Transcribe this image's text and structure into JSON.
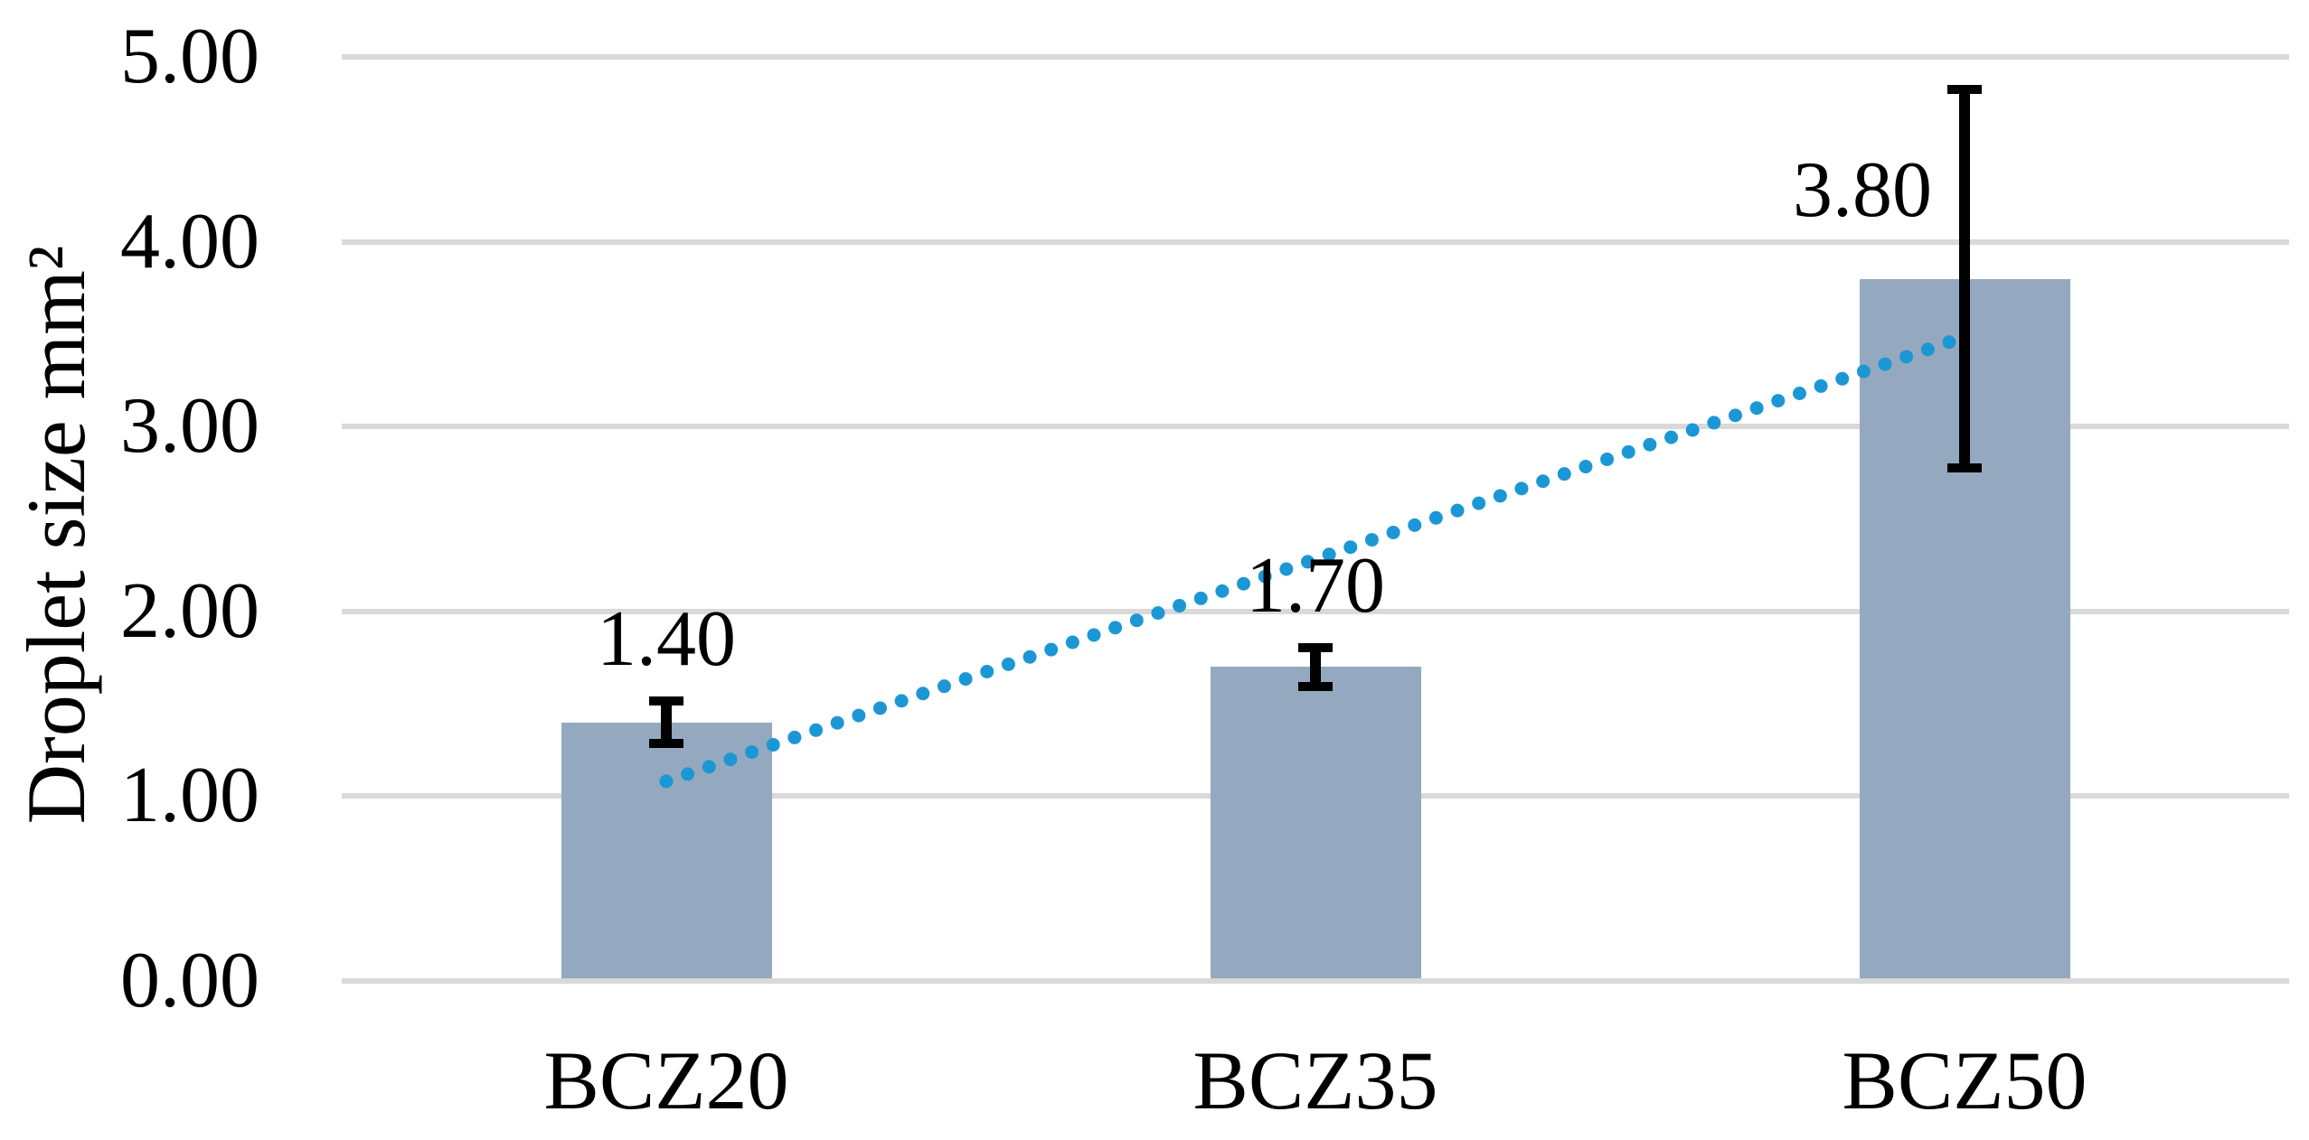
{
  "chart_data": {
    "type": "bar",
    "title": "",
    "categories": [
      "BCZ20",
      "BCZ35",
      "BCZ50"
    ],
    "values": [
      1.4,
      1.7,
      3.8
    ],
    "value_labels": [
      "1.40",
      "1.70",
      "3.80"
    ],
    "errors": [
      0.14,
      0.13,
      1.05
    ],
    "xlabel": "",
    "ylabel": "Droplet size mm²",
    "ylim": [
      0,
      5
    ],
    "ytick_step": 1.0,
    "ytick_labels": [
      "0.00",
      "1.00",
      "2.00",
      "3.00",
      "4.00",
      "5.00"
    ],
    "grid": true,
    "legend": false,
    "label_placement": [
      "above",
      "above",
      "left"
    ],
    "trendline": {
      "type": "linear",
      "style": "dotted",
      "start_value": 1.08,
      "end_value": 3.46
    },
    "colors": {
      "bar_fill": "#94a9bf",
      "trendline": "#1c97d5",
      "gridline": "#d9d9d9",
      "error_bar": "#000000",
      "text": "#000000",
      "background": "#ffffff"
    }
  }
}
